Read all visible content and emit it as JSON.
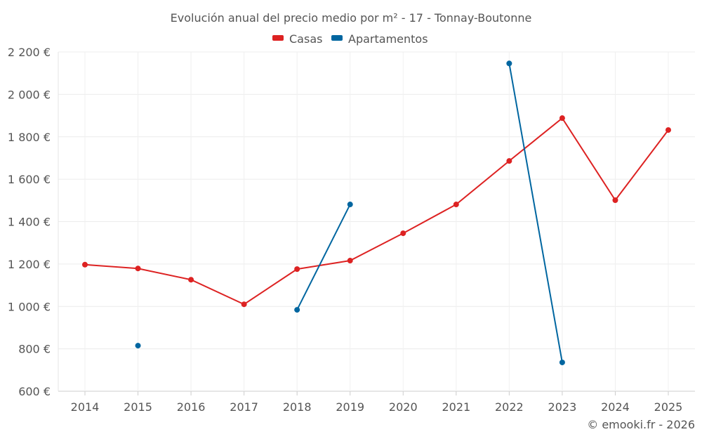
{
  "chart_data": {
    "type": "line",
    "title": "Evolución anual del precio medio por m² - 17 - Tonnay-Boutonne",
    "categories": [
      "2014",
      "2015",
      "2016",
      "2017",
      "2018",
      "2019",
      "2020",
      "2021",
      "2022",
      "2023",
      "2024",
      "2025"
    ],
    "series": [
      {
        "name": "Casas",
        "color": "#dd2222",
        "values": [
          1197,
          1179,
          1126,
          1010,
          1176,
          1216,
          1345,
          1481,
          1686,
          1888,
          1501,
          1832
        ]
      },
      {
        "name": "Apartamentos",
        "color": "#0066a0",
        "values": [
          null,
          815,
          null,
          null,
          984,
          1481,
          null,
          null,
          2146,
          736,
          null,
          null
        ]
      }
    ],
    "yticks": [
      "600 €",
      "800 €",
      "1 000 €",
      "1 200 €",
      "1 400 €",
      "1 600 €",
      "1 800 €",
      "2 000 €",
      "2 200 €"
    ],
    "ylim": [
      600,
      2200
    ],
    "grid": true,
    "legend": "top-center",
    "xlabel": "",
    "ylabel": "",
    "credit": "© emooki.fr - 2026"
  }
}
